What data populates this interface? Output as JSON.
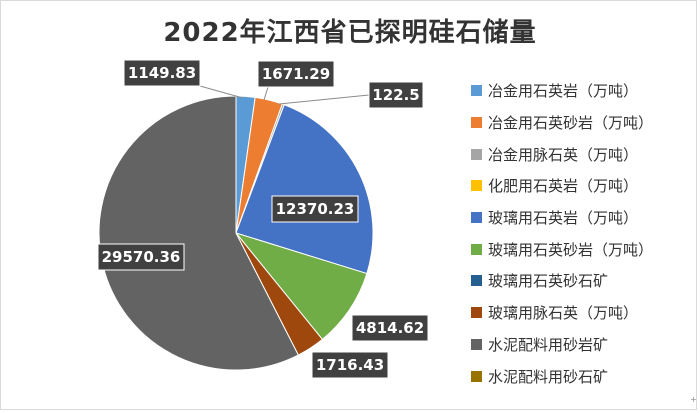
{
  "chart_data": {
    "type": "pie",
    "title": "2022年江西省已探明硅石储量",
    "slices": [
      {
        "label": "冶金用石英岩（万吨）",
        "value": 1149.83,
        "color": "#5b9bd5",
        "data_label": "1149.83"
      },
      {
        "label": "冶金用石英砂岩（万吨）",
        "value": 1671.29,
        "color": "#ed7d31",
        "data_label": "1671.29"
      },
      {
        "label": "冶金用脉石英（万吨）",
        "value": 122.5,
        "color": "#a5a5a5",
        "data_label": "122.5"
      },
      {
        "label": "化肥用石英岩（万吨）",
        "value": 0,
        "color": "#ffc000",
        "data_label": ""
      },
      {
        "label": "玻璃用石英岩（万吨）",
        "value": 12370.23,
        "color": "#4472c4",
        "data_label": "12370.23"
      },
      {
        "label": "玻璃用石英砂岩（万吨）",
        "value": 4814.62,
        "color": "#70ad47",
        "data_label": "4814.62"
      },
      {
        "label": "玻璃用石英砂石矿",
        "value": 0,
        "color": "#255e91",
        "data_label": ""
      },
      {
        "label": "玻璃用脉石英（万吨）",
        "value": 1716.43,
        "color": "#9e480e",
        "data_label": "1716.43"
      },
      {
        "label": "水泥配料用砂岩矿",
        "value": 29570.36,
        "color": "#636363",
        "data_label": "29570.36"
      },
      {
        "label": "水泥配料用砂石矿",
        "value": 0,
        "color": "#997300",
        "data_label": ""
      }
    ],
    "legend_position": "right"
  },
  "corner_mark": "+"
}
